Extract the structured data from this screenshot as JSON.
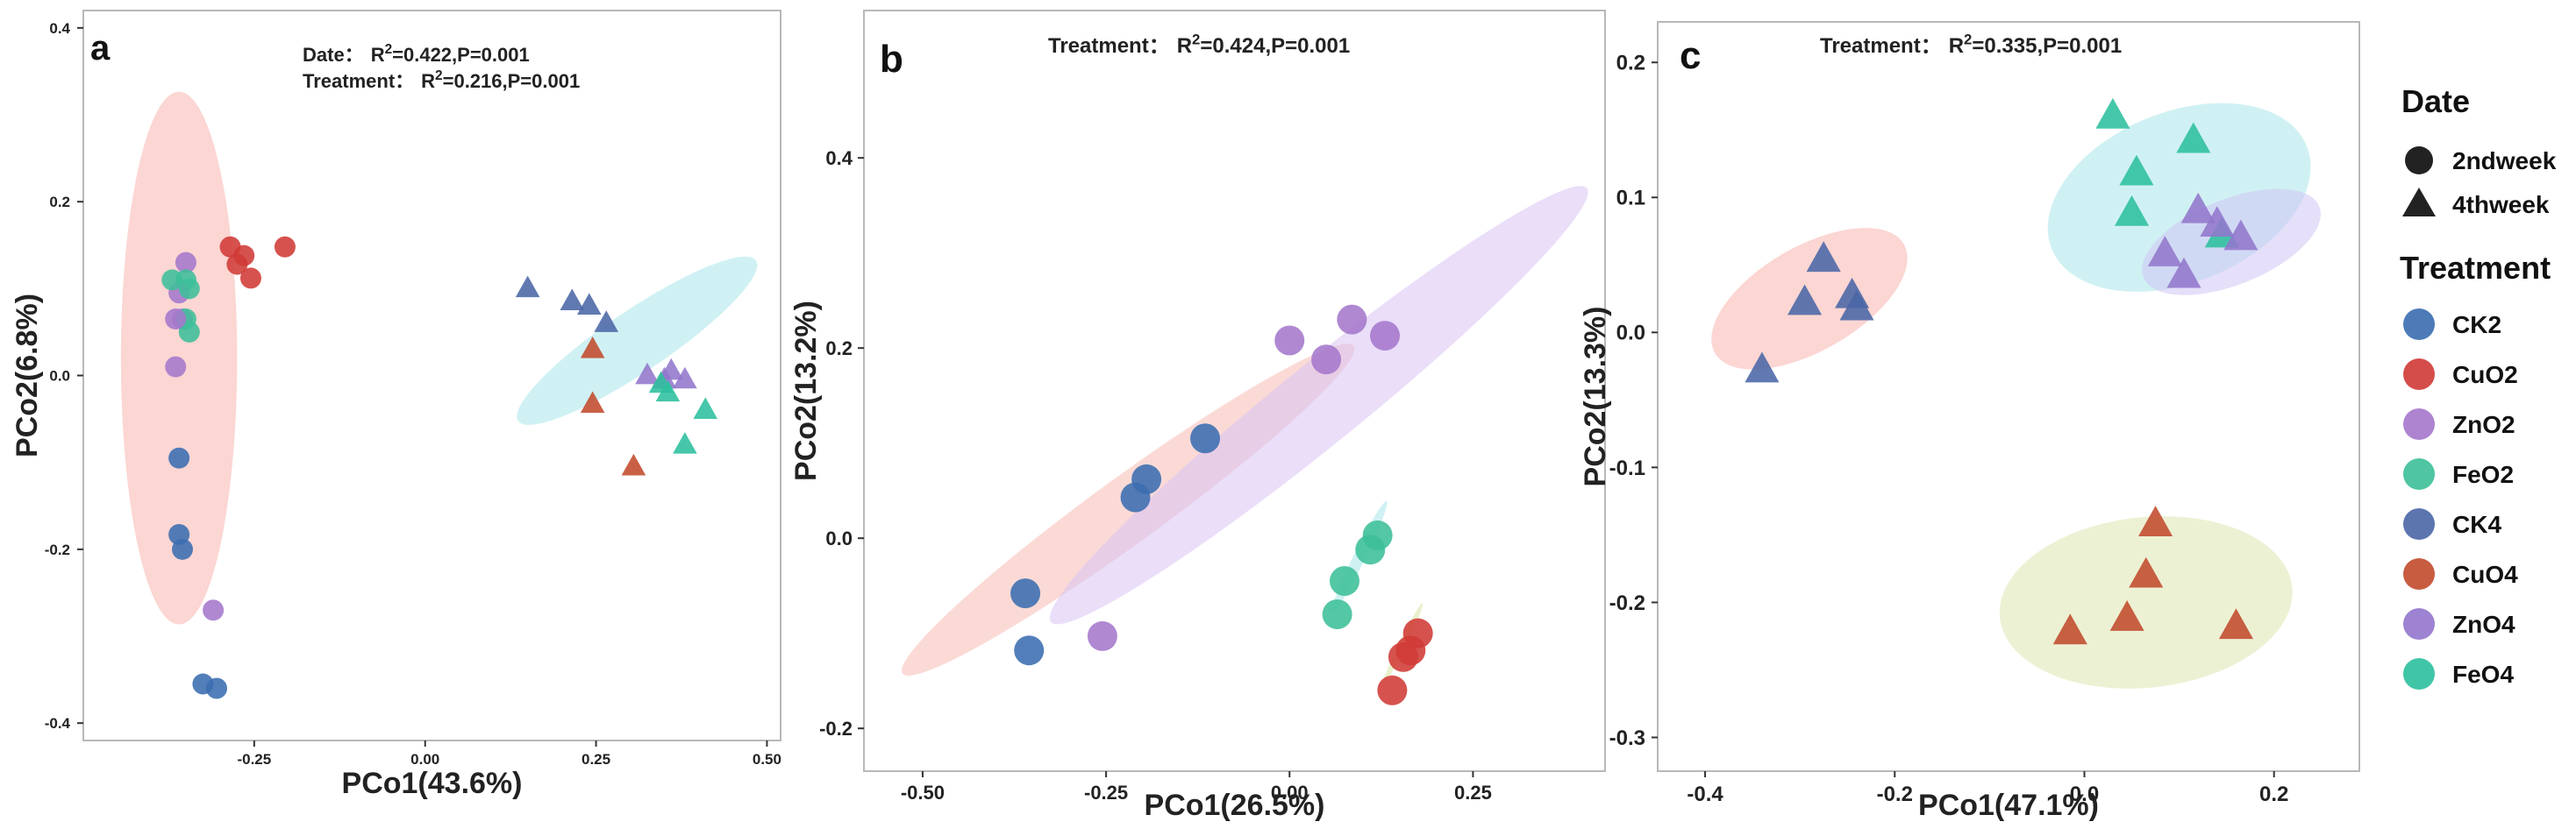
{
  "colors": {
    "CK2": "#3a6db0",
    "CuO2": "#d03a36",
    "ZnO2": "#a577cc",
    "FeO2": "#3cbf98",
    "CK4": "#4a66a6",
    "CuO4": "#c24a2c",
    "ZnO4": "#9276cc",
    "FeO4": "#2cbf9d"
  },
  "legend": {
    "date_title": "Date",
    "date_items": [
      {
        "label": "2ndweek",
        "shape": "circle"
      },
      {
        "label": "4thweek",
        "shape": "triangle"
      }
    ],
    "treatment_title": "Treatment",
    "treatment_items": [
      {
        "label": "CK2",
        "color": "#3a6db0"
      },
      {
        "label": "CuO2",
        "color": "#d03a36"
      },
      {
        "label": "ZnO2",
        "color": "#a577cc"
      },
      {
        "label": "FeO2",
        "color": "#3cbf98"
      },
      {
        "label": "CK4",
        "color": "#4a66a6"
      },
      {
        "label": "CuO4",
        "color": "#c24a2c"
      },
      {
        "label": "ZnO4",
        "color": "#9276cc"
      },
      {
        "label": "FeO4",
        "color": "#2cbf9d"
      }
    ]
  },
  "chart_data": [
    {
      "type": "scatter",
      "panel": "a",
      "xlabel": "PCo1(43.6%)",
      "ylabel": "PCo2(6.8%)",
      "xlim": [
        -0.5,
        0.52
      ],
      "ylim": [
        -0.42,
        0.42
      ],
      "xticks": [
        -0.25,
        0.0,
        0.25,
        0.5
      ],
      "xtick_labels": [
        "-0.25",
        "0.00",
        "0.25",
        "0.50"
      ],
      "yticks": [
        -0.4,
        -0.2,
        0.0,
        0.2,
        0.4
      ],
      "ytick_labels": [
        "-0.4",
        "-0.2",
        "0.0",
        "0.2",
        "0.4"
      ],
      "stats": [
        {
          "label": "Date：",
          "r2": "R",
          "sup": "2",
          "rest": "=0.422,P=0.001"
        },
        {
          "label": "Treatment：",
          "r2": "R",
          "sup": "2",
          "rest": "=0.216,P=0.001"
        }
      ],
      "ellipses": [
        {
          "group": "2ndweek",
          "cx": -0.36,
          "cy": 0.02,
          "rx": 0.085,
          "ry": 0.39,
          "angle": 0,
          "color": "#f7b5ae"
        },
        {
          "group": "4thweek",
          "cx": 0.31,
          "cy": 0.04,
          "rx": 0.21,
          "ry": 0.045,
          "angle": -34,
          "color": "#a9e6ea"
        }
      ],
      "points": [
        {
          "x": -0.35,
          "y": 0.13,
          "g": "ZnO2",
          "s": "circle"
        },
        {
          "x": -0.35,
          "y": 0.11,
          "g": "FeO2",
          "s": "circle"
        },
        {
          "x": -0.36,
          "y": 0.095,
          "g": "ZnO2",
          "s": "circle"
        },
        {
          "x": -0.345,
          "y": 0.1,
          "g": "FeO2",
          "s": "circle"
        },
        {
          "x": -0.355,
          "y": 0.065,
          "g": "ZnO2",
          "s": "circle"
        },
        {
          "x": -0.35,
          "y": 0.065,
          "g": "FeO2",
          "s": "circle"
        },
        {
          "x": -0.345,
          "y": 0.05,
          "g": "FeO2",
          "s": "circle"
        },
        {
          "x": -0.365,
          "y": 0.065,
          "g": "ZnO2",
          "s": "circle"
        },
        {
          "x": -0.37,
          "y": 0.11,
          "g": "FeO2",
          "s": "circle"
        },
        {
          "x": -0.365,
          "y": 0.01,
          "g": "ZnO2",
          "s": "circle"
        },
        {
          "x": -0.285,
          "y": 0.148,
          "g": "CuO2",
          "s": "circle"
        },
        {
          "x": -0.275,
          "y": 0.128,
          "g": "CuO2",
          "s": "circle"
        },
        {
          "x": -0.265,
          "y": 0.138,
          "g": "CuO2",
          "s": "circle"
        },
        {
          "x": -0.255,
          "y": 0.112,
          "g": "CuO2",
          "s": "circle"
        },
        {
          "x": -0.205,
          "y": 0.148,
          "g": "CuO2",
          "s": "circle"
        },
        {
          "x": -0.36,
          "y": -0.095,
          "g": "CK2",
          "s": "circle"
        },
        {
          "x": -0.36,
          "y": -0.183,
          "g": "CK2",
          "s": "circle"
        },
        {
          "x": -0.355,
          "y": -0.2,
          "g": "CK2",
          "s": "circle"
        },
        {
          "x": -0.31,
          "y": -0.27,
          "g": "ZnO2",
          "s": "circle"
        },
        {
          "x": -0.325,
          "y": -0.355,
          "g": "CK2",
          "s": "circle"
        },
        {
          "x": -0.305,
          "y": -0.36,
          "g": "CK2",
          "s": "circle"
        },
        {
          "x": 0.15,
          "y": 0.1,
          "g": "CK4",
          "s": "triangle"
        },
        {
          "x": 0.215,
          "y": 0.085,
          "g": "CK4",
          "s": "triangle"
        },
        {
          "x": 0.24,
          "y": 0.08,
          "g": "CK4",
          "s": "triangle"
        },
        {
          "x": 0.265,
          "y": 0.06,
          "g": "CK4",
          "s": "triangle"
        },
        {
          "x": 0.245,
          "y": 0.03,
          "g": "CuO4",
          "s": "triangle"
        },
        {
          "x": 0.245,
          "y": -0.033,
          "g": "CuO4",
          "s": "triangle"
        },
        {
          "x": 0.305,
          "y": -0.105,
          "g": "CuO4",
          "s": "triangle"
        },
        {
          "x": 0.325,
          "y": 0.0,
          "g": "ZnO4",
          "s": "triangle"
        },
        {
          "x": 0.35,
          "y": -0.005,
          "g": "ZnO4",
          "s": "triangle"
        },
        {
          "x": 0.36,
          "y": 0.005,
          "g": "ZnO4",
          "s": "triangle"
        },
        {
          "x": 0.38,
          "y": -0.005,
          "g": "ZnO4",
          "s": "triangle"
        },
        {
          "x": 0.345,
          "y": -0.01,
          "g": "FeO4",
          "s": "triangle"
        },
        {
          "x": 0.355,
          "y": -0.02,
          "g": "FeO4",
          "s": "triangle"
        },
        {
          "x": 0.41,
          "y": -0.04,
          "g": "FeO4",
          "s": "triangle"
        },
        {
          "x": 0.38,
          "y": -0.08,
          "g": "FeO4",
          "s": "triangle"
        }
      ]
    },
    {
      "type": "scatter",
      "panel": "b",
      "xlabel": "PCo1(26.5%)",
      "ylabel": "PCo2(13.2%)",
      "xlim": [
        -0.58,
        0.43
      ],
      "ylim": [
        -0.245,
        0.555
      ],
      "xticks": [
        -0.5,
        -0.25,
        0.0,
        0.25
      ],
      "xtick_labels": [
        "-0.50",
        "-0.25",
        "0.00",
        "0.25"
      ],
      "yticks": [
        -0.2,
        0.0,
        0.2,
        0.4
      ],
      "ytick_labels": [
        "-0.2",
        "0.0",
        "0.2",
        "0.4"
      ],
      "stats": [
        {
          "label": "Treatment：",
          "r2": "R",
          "sup": "2",
          "rest": "=0.424,P=0.001"
        }
      ],
      "ellipses": [
        {
          "group": "CK",
          "cx": -0.22,
          "cy": 0.03,
          "rx": 0.38,
          "ry": 0.045,
          "angle": -36,
          "color": "#f7bcb4"
        },
        {
          "group": "ZnO",
          "cx": 0.04,
          "cy": 0.14,
          "rx": 0.47,
          "ry": 0.055,
          "angle": -39,
          "color": "#d8c2f4"
        },
        {
          "group": "FeO",
          "cx": 0.095,
          "cy": -0.02,
          "rx": 0.085,
          "ry": 0.008,
          "angle": -64,
          "color": "#a9e6ea"
        },
        {
          "group": "CuO",
          "cx": 0.155,
          "cy": -0.11,
          "rx": 0.06,
          "ry": 0.005,
          "angle": -64,
          "color": "#d9e6a6"
        }
      ],
      "points": [
        {
          "x": -0.36,
          "y": -0.058,
          "g": "CK2",
          "s": "circle"
        },
        {
          "x": -0.355,
          "y": -0.118,
          "g": "CK2",
          "s": "circle"
        },
        {
          "x": -0.21,
          "y": 0.043,
          "g": "CK2",
          "s": "circle"
        },
        {
          "x": -0.195,
          "y": 0.062,
          "g": "CK2",
          "s": "circle"
        },
        {
          "x": -0.115,
          "y": 0.105,
          "g": "CK2",
          "s": "circle"
        },
        {
          "x": -0.255,
          "y": -0.103,
          "g": "ZnO2",
          "s": "circle"
        },
        {
          "x": 0.0,
          "y": 0.208,
          "g": "ZnO2",
          "s": "circle"
        },
        {
          "x": 0.05,
          "y": 0.188,
          "g": "ZnO2",
          "s": "circle"
        },
        {
          "x": 0.085,
          "y": 0.23,
          "g": "ZnO2",
          "s": "circle"
        },
        {
          "x": 0.13,
          "y": 0.213,
          "g": "ZnO2",
          "s": "circle"
        },
        {
          "x": 0.12,
          "y": 0.003,
          "g": "FeO2",
          "s": "circle"
        },
        {
          "x": 0.11,
          "y": -0.012,
          "g": "FeO2",
          "s": "circle"
        },
        {
          "x": 0.075,
          "y": -0.045,
          "g": "FeO2",
          "s": "circle"
        },
        {
          "x": 0.065,
          "y": -0.08,
          "g": "FeO2",
          "s": "circle"
        },
        {
          "x": 0.175,
          "y": -0.1,
          "g": "CuO2",
          "s": "circle"
        },
        {
          "x": 0.165,
          "y": -0.118,
          "g": "CuO2",
          "s": "circle"
        },
        {
          "x": 0.155,
          "y": -0.125,
          "g": "CuO2",
          "s": "circle"
        },
        {
          "x": 0.14,
          "y": -0.16,
          "g": "CuO2",
          "s": "circle"
        }
      ]
    },
    {
      "type": "scatter",
      "panel": "c",
      "xlabel": "PCo1(47.1%)",
      "ylabel": "PCo2(13.3%)",
      "xlim": [
        -0.45,
        0.29
      ],
      "ylim": [
        -0.325,
        0.23
      ],
      "xticks": [
        -0.4,
        -0.2,
        0.0,
        0.2
      ],
      "xtick_labels": [
        "-0.4",
        "-0.2",
        "0.0",
        "0.2"
      ],
      "yticks": [
        -0.3,
        -0.2,
        -0.1,
        0.0,
        0.1,
        0.2
      ],
      "ytick_labels": [
        "-0.3",
        "-0.2",
        "-0.1",
        "0.0",
        "0.1",
        "0.2"
      ],
      "stats": [
        {
          "label": "Treatment：",
          "r2": "R",
          "sup": "2",
          "rest": "=0.335,P=0.001"
        }
      ],
      "ellipses": [
        {
          "group": "CK4",
          "cx": -0.29,
          "cy": 0.025,
          "rx": 0.115,
          "ry": 0.055,
          "angle": -30,
          "color": "#f7b5ae"
        },
        {
          "group": "FeO4",
          "cx": 0.1,
          "cy": 0.1,
          "rx": 0.145,
          "ry": 0.09,
          "angle": -22,
          "color": "#a9e6ea"
        },
        {
          "group": "ZnO4",
          "cx": 0.155,
          "cy": 0.067,
          "rx": 0.1,
          "ry": 0.045,
          "angle": -22,
          "color": "#d0c4f4"
        },
        {
          "group": "CuO4",
          "cx": 0.065,
          "cy": -0.2,
          "rx": 0.155,
          "ry": 0.09,
          "angle": -6,
          "color": "#dfe6b0"
        }
      ],
      "points": [
        {
          "x": -0.34,
          "y": -0.028,
          "g": "CK4",
          "s": "triangle"
        },
        {
          "x": -0.295,
          "y": 0.022,
          "g": "CK4",
          "s": "triangle"
        },
        {
          "x": -0.275,
          "y": 0.054,
          "g": "CK4",
          "s": "triangle"
        },
        {
          "x": -0.245,
          "y": 0.027,
          "g": "CK4",
          "s": "triangle"
        },
        {
          "x": -0.24,
          "y": 0.018,
          "g": "CK4",
          "s": "triangle"
        },
        {
          "x": 0.03,
          "y": 0.16,
          "g": "FeO4",
          "s": "triangle"
        },
        {
          "x": 0.055,
          "y": 0.118,
          "g": "FeO4",
          "s": "triangle"
        },
        {
          "x": 0.05,
          "y": 0.088,
          "g": "FeO4",
          "s": "triangle"
        },
        {
          "x": 0.115,
          "y": 0.142,
          "g": "FeO4",
          "s": "triangle"
        },
        {
          "x": 0.145,
          "y": 0.072,
          "g": "FeO4",
          "s": "triangle"
        },
        {
          "x": 0.085,
          "y": 0.058,
          "g": "ZnO4",
          "s": "triangle"
        },
        {
          "x": 0.12,
          "y": 0.09,
          "g": "ZnO4",
          "s": "triangle"
        },
        {
          "x": 0.14,
          "y": 0.08,
          "g": "ZnO4",
          "s": "triangle"
        },
        {
          "x": 0.165,
          "y": 0.07,
          "g": "ZnO4",
          "s": "triangle"
        },
        {
          "x": 0.105,
          "y": 0.042,
          "g": "ZnO4",
          "s": "triangle"
        },
        {
          "x": -0.015,
          "y": -0.222,
          "g": "CuO4",
          "s": "triangle"
        },
        {
          "x": 0.045,
          "y": -0.212,
          "g": "CuO4",
          "s": "triangle"
        },
        {
          "x": 0.065,
          "y": -0.18,
          "g": "CuO4",
          "s": "triangle"
        },
        {
          "x": 0.075,
          "y": -0.142,
          "g": "CuO4",
          "s": "triangle"
        },
        {
          "x": 0.16,
          "y": -0.218,
          "g": "CuO4",
          "s": "triangle"
        }
      ]
    }
  ]
}
